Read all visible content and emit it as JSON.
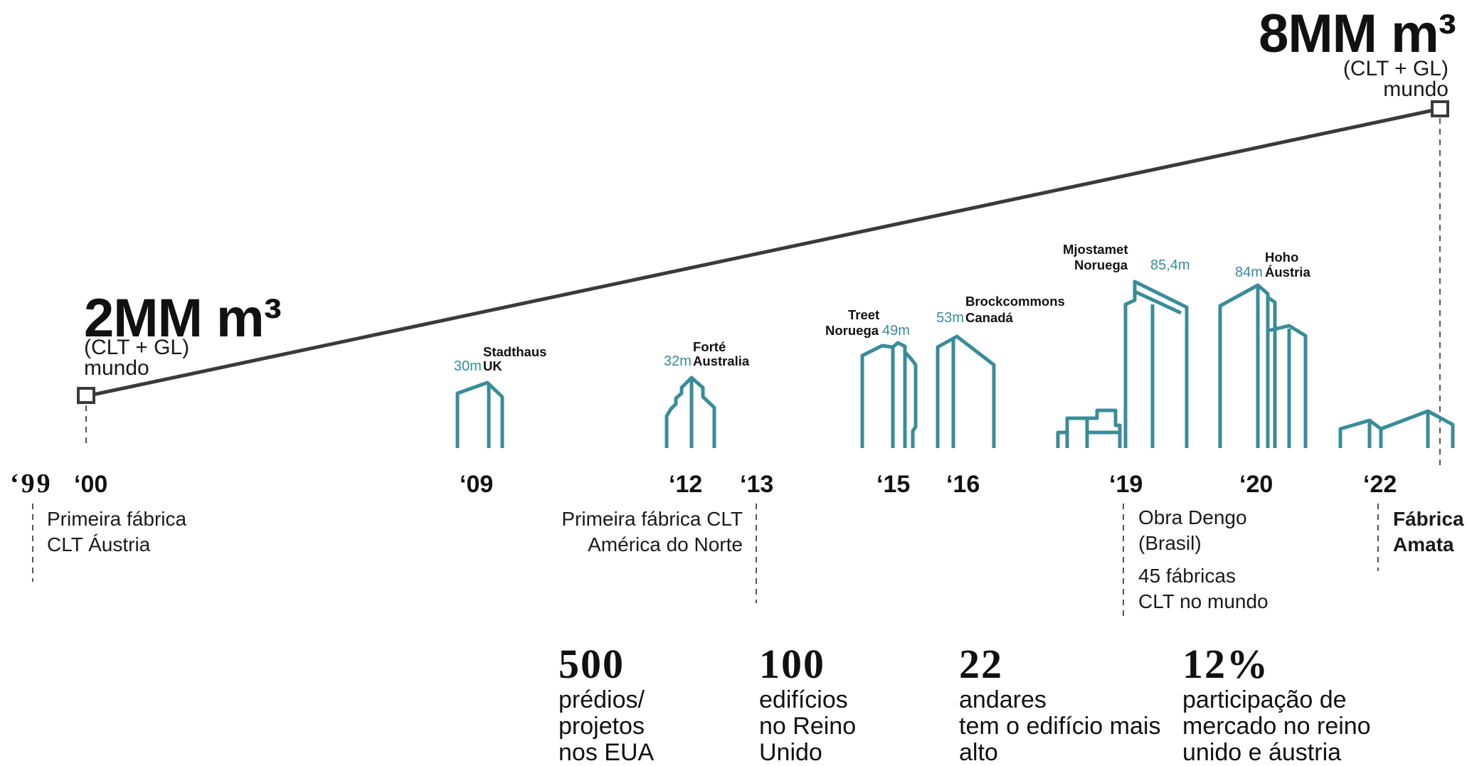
{
  "volumes": {
    "start": {
      "value": "2MM m³",
      "detail": "(CLT + GL)",
      "scope": "mundo"
    },
    "end": {
      "value": "8MM m³",
      "detail": "(CLT + GL)",
      "scope": "mundo"
    }
  },
  "years": [
    "‘99",
    "‘00",
    "‘09",
    "‘12",
    "‘13",
    "‘15",
    "‘16",
    "‘19",
    "‘20",
    "‘22"
  ],
  "buildings": {
    "stadthaus": {
      "height": "30m",
      "name": "Stadthaus",
      "country": "UK"
    },
    "forte": {
      "height": "32m",
      "name": "Forté",
      "country": "Australia"
    },
    "treet": {
      "height": "49m",
      "name": "Treet",
      "country": "Noruega"
    },
    "brockcommons": {
      "height": "53m",
      "name": "Brockcommons",
      "country": "Canadá"
    },
    "mjostamet": {
      "height": "85,4m",
      "name": "Mjostamet",
      "country": "Noruega"
    },
    "hoho": {
      "height": "84m",
      "name": "Hoho",
      "country": "Áustria"
    }
  },
  "events": {
    "e2000": [
      "Primeira fábrica",
      "CLT Áustria"
    ],
    "e2013": [
      "Primeira fábrica CLT",
      "América do Norte"
    ],
    "e2019a": [
      "Obra Dengo",
      "(Brasil)"
    ],
    "e2019b": [
      "45 fábricas",
      "CLT no mundo"
    ],
    "e2022": [
      "Fábrica",
      "Amata"
    ]
  },
  "stats": [
    {
      "value": "500",
      "lines": [
        "prédios/",
        "projetos",
        "nos EUA"
      ]
    },
    {
      "value": "100",
      "lines": [
        "edifícios",
        "no Reino",
        "Unido"
      ]
    },
    {
      "value": "22",
      "lines": [
        "andares",
        "tem o edifício mais",
        "alto"
      ]
    },
    {
      "value": "12%",
      "lines": [
        "participação de",
        "mercado no reino",
        "unido e áustria"
      ]
    }
  ],
  "colors": {
    "line": "#3a3a3a",
    "building": "#3a8c99",
    "text": "#111111"
  }
}
